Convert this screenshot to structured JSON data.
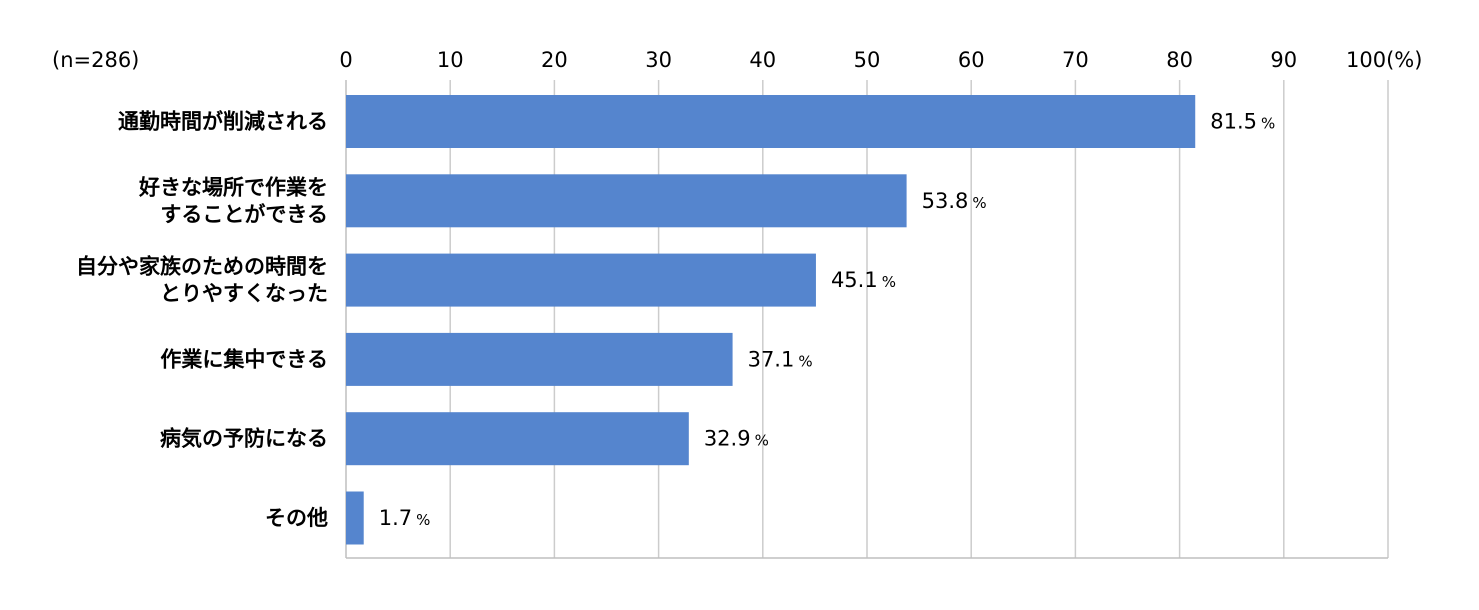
{
  "chart_data": {
    "type": "bar",
    "orientation": "horizontal",
    "sample_note": "(n=286)",
    "x_ticks": [
      "0",
      "10",
      "20",
      "30",
      "40",
      "50",
      "60",
      "70",
      "80",
      "90",
      "100(%)"
    ],
    "xlim": [
      0,
      100
    ],
    "grid": true,
    "categories": [
      [
        "通勤時間が削減される"
      ],
      [
        "好きな場所で作業を",
        "することができる"
      ],
      [
        "自分や家族のための時間を",
        "とりやすくなった"
      ],
      [
        "作業に集中できる"
      ],
      [
        "病気の予防になる"
      ],
      [
        "その他"
      ]
    ],
    "values": [
      81.5,
      53.8,
      45.1,
      37.1,
      32.9,
      1.7
    ],
    "value_labels": [
      "81.5",
      "53.8",
      "45.1",
      "37.1",
      "32.9",
      "1.7"
    ],
    "value_unit": "%",
    "colors": {
      "bar": "#5585CE",
      "grid": "#cccccc",
      "axis": "#bfbfbf"
    }
  }
}
